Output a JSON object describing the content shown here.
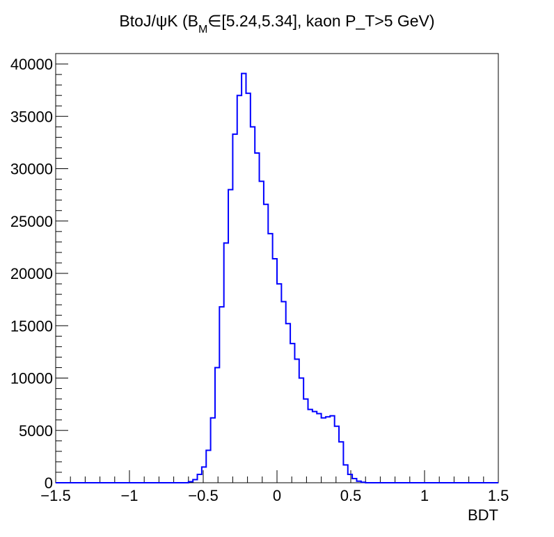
{
  "chart_data": {
    "type": "histogram",
    "title_parts": {
      "pre": "BtoJ/ψK (B",
      "sub": "M",
      "post": "∈[5.24,5.34], kaon P_T>5 GeV)"
    },
    "xlabel": "BDT",
    "ylabel": "",
    "xlim": [
      -1.5,
      1.5
    ],
    "ylim": [
      0,
      41000
    ],
    "x_ticks": [
      -1.5,
      -1,
      -0.5,
      0,
      0.5,
      1,
      1.5
    ],
    "x_tick_labels": [
      "−1.5",
      "−1",
      "−0.5",
      "0",
      "0.5",
      "1",
      "1.5"
    ],
    "y_ticks": [
      0,
      5000,
      10000,
      15000,
      20000,
      25000,
      30000,
      35000,
      40000
    ],
    "y_tick_labels": [
      "0",
      "5000",
      "10000",
      "15000",
      "20000",
      "25000",
      "30000",
      "35000",
      "40000"
    ],
    "grid": false,
    "legend": "none",
    "line_color": "#0000ff",
    "bin_width": 0.03,
    "bin_low_edges": [
      -0.6,
      -0.57,
      -0.54,
      -0.51,
      -0.48,
      -0.45,
      -0.42,
      -0.39,
      -0.36,
      -0.33,
      -0.3,
      -0.27,
      -0.24,
      -0.21,
      -0.18,
      -0.15,
      -0.12,
      -0.09,
      -0.06,
      -0.03,
      0.0,
      0.03,
      0.06,
      0.09,
      0.12,
      0.15,
      0.18,
      0.21,
      0.24,
      0.27,
      0.3,
      0.33,
      0.36,
      0.39,
      0.42,
      0.45,
      0.48,
      0.51,
      0.54,
      0.57
    ],
    "values": [
      100,
      300,
      800,
      1500,
      3100,
      6200,
      11000,
      16800,
      22900,
      28000,
      33300,
      37000,
      39100,
      37200,
      34000,
      31500,
      28800,
      26600,
      23800,
      21400,
      19000,
      17300,
      15200,
      13300,
      11800,
      10000,
      8000,
      7000,
      6800,
      6600,
      6200,
      6300,
      6400,
      5400,
      3900,
      1700,
      800,
      400,
      150,
      50
    ]
  }
}
